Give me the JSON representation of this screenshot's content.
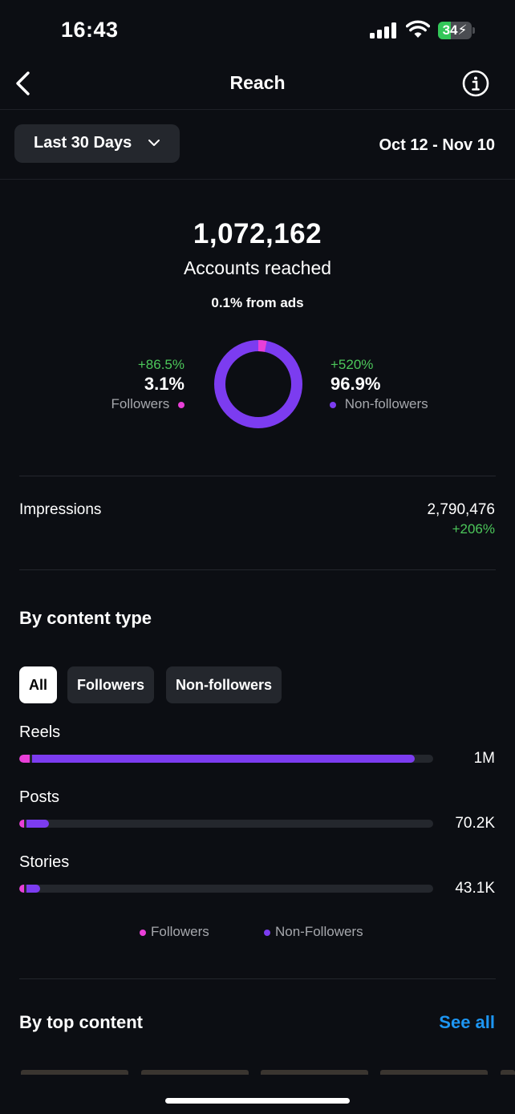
{
  "status_bar": {
    "time": "16:43",
    "battery": "34"
  },
  "header": {
    "title": "Reach"
  },
  "filter": {
    "range_label": "Last 30 Days",
    "date_range": "Oct 12 - Nov 10"
  },
  "summary": {
    "accounts_reached": "1,072,162",
    "accounts_label": "Accounts reached",
    "ads_note": "0.1% from ads",
    "followers": {
      "change": "+86.5%",
      "percent": "3.1%",
      "label": "Followers",
      "share": 3.1
    },
    "non_followers": {
      "change": "+520%",
      "percent": "96.9%",
      "label": "Non-followers",
      "share": 96.9
    }
  },
  "impressions": {
    "label": "Impressions",
    "value": "2,790,476",
    "change": "+206%"
  },
  "content_type": {
    "title": "By content type",
    "tabs": [
      "All",
      "Followers",
      "Non-followers"
    ],
    "active_tab": "All",
    "rows": [
      {
        "label": "Reels",
        "value": "1M",
        "followers_fraction": 0.025,
        "non_followers_fraction": 0.925
      },
      {
        "label": "Posts",
        "value": "70.2K",
        "followers_fraction": 0.012,
        "non_followers_fraction": 0.055
      },
      {
        "label": "Stories",
        "value": "43.1K",
        "followers_fraction": 0.011,
        "non_followers_fraction": 0.033
      }
    ],
    "legend": {
      "followers": "Followers",
      "non_followers": "Non-Followers"
    }
  },
  "top_content": {
    "title": "By top content",
    "see_all": "See all"
  },
  "colors": {
    "followers": "#e93fd8",
    "non_followers": "#7c3cf0",
    "positive": "#4cc75a",
    "link": "#1d96f3"
  }
}
